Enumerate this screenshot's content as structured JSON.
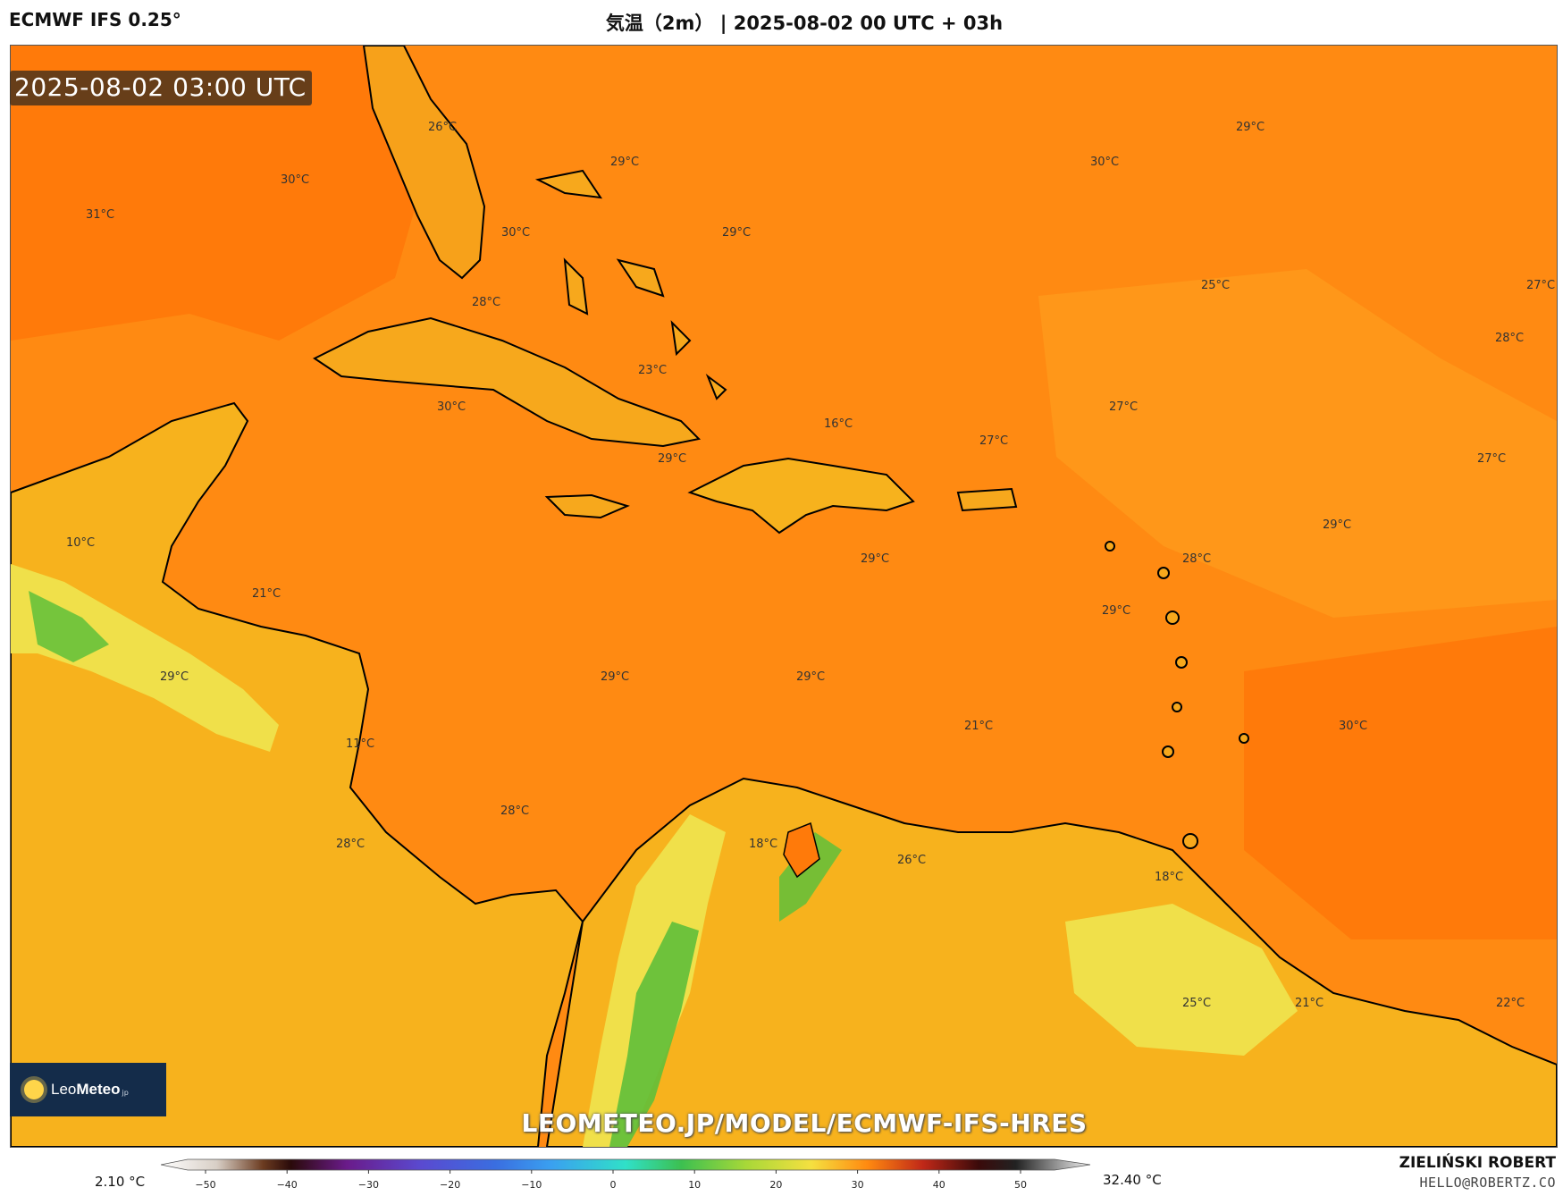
{
  "header": {
    "model": "ECMWF IFS 0.25°",
    "title": "気温（2m） | 2025-08-02 00 UTC + 03h"
  },
  "map": {
    "valid_time": "2025-08-02 03:00 UTC",
    "watermark": "LEOMETEO.JP/MODEL/ECMWF-IFS-HRES",
    "ocean_color": "#ff8a12",
    "land_warm_color": "#f7b21d",
    "land_cool_color": "#f0e04a",
    "highland_color": "#5fbf3a",
    "coast_color": "#000000",
    "temperature_labels": [
      {
        "id": "t01",
        "text": "26°C"
      },
      {
        "id": "t02",
        "text": "29°C"
      },
      {
        "id": "t03",
        "text": "30°C"
      },
      {
        "id": "t04",
        "text": "29°C"
      },
      {
        "id": "t05",
        "text": "30°C"
      },
      {
        "id": "t06",
        "text": "31°C"
      },
      {
        "id": "t07",
        "text": "30°C"
      },
      {
        "id": "t08",
        "text": "29°C"
      },
      {
        "id": "t09",
        "text": "25°C"
      },
      {
        "id": "t10",
        "text": "27°C"
      },
      {
        "id": "t11",
        "text": "28°C"
      },
      {
        "id": "t12",
        "text": "28°C"
      },
      {
        "id": "t13",
        "text": "23°C"
      },
      {
        "id": "t14",
        "text": "30°C"
      },
      {
        "id": "t15",
        "text": "27°C"
      },
      {
        "id": "t16",
        "text": "16°C"
      },
      {
        "id": "t17",
        "text": "27°C"
      },
      {
        "id": "t18",
        "text": "29°C"
      },
      {
        "id": "t19",
        "text": "27°C"
      },
      {
        "id": "t20",
        "text": "10°C"
      },
      {
        "id": "t21",
        "text": "29°C"
      },
      {
        "id": "t22",
        "text": "29°C"
      },
      {
        "id": "t23",
        "text": "28°C"
      },
      {
        "id": "t24",
        "text": "21°C"
      },
      {
        "id": "t25",
        "text": "29°C"
      },
      {
        "id": "t26",
        "text": "29°C"
      },
      {
        "id": "t27",
        "text": "29°C"
      },
      {
        "id": "t28",
        "text": "29°C"
      },
      {
        "id": "t29",
        "text": "11°C"
      },
      {
        "id": "t30",
        "text": "21°C"
      },
      {
        "id": "t31",
        "text": "30°C"
      },
      {
        "id": "t32",
        "text": "28°C"
      },
      {
        "id": "t33",
        "text": "28°C"
      },
      {
        "id": "t34",
        "text": "18°C"
      },
      {
        "id": "t35",
        "text": "26°C"
      },
      {
        "id": "t36",
        "text": "18°C"
      },
      {
        "id": "t37",
        "text": "25°C"
      },
      {
        "id": "t38",
        "text": "21°C"
      },
      {
        "id": "t39",
        "text": "22°C"
      }
    ]
  },
  "logo": {
    "brand_light": "Leo",
    "brand_bold": "Meteo",
    "suffix": "jp"
  },
  "scale": {
    "min_label": "2.10 °C",
    "max_label": "32.40 °C",
    "ticks": [
      "−50",
      "−40",
      "−30",
      "−20",
      "−10",
      "0",
      "10",
      "20",
      "30",
      "40",
      "50"
    ]
  },
  "credit": {
    "author": "ZIELIŃSKI ROBERT",
    "contact": "HELLO@ROBERTZ.CO"
  }
}
